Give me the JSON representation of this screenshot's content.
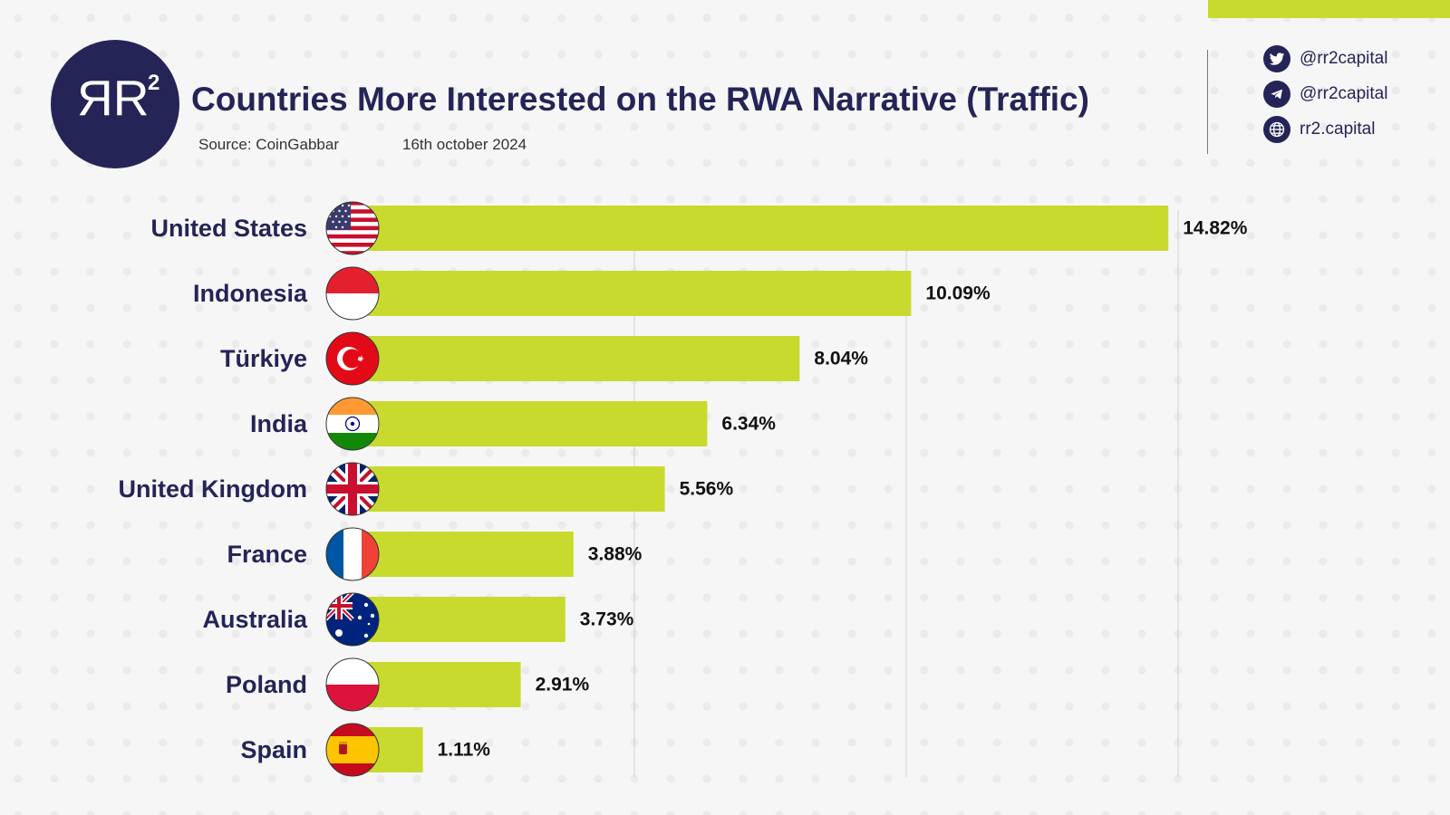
{
  "header": {
    "logo_text": "RR",
    "logo_superscript": "2",
    "title": "Countries More Interested on the RWA Narrative (Traffic)",
    "source": "Source: CoinGabbar",
    "date": "16th october 2024"
  },
  "social": [
    {
      "icon": "twitter-icon",
      "label": "@rr2capital"
    },
    {
      "icon": "telegram-icon",
      "label": "@rr2capital"
    },
    {
      "icon": "globe-icon",
      "label": "rr2.capital"
    }
  ],
  "colors": {
    "bar": "#c8da2e",
    "navy": "#252457",
    "accent": "#c8da2e"
  },
  "chart_data": {
    "type": "bar",
    "orientation": "horizontal",
    "title": "Countries More Interested on the RWA Narrative (Traffic)",
    "categories": [
      "United States",
      "Indonesia",
      "Türkiye",
      "India",
      "United Kingdom",
      "France",
      "Australia",
      "Poland",
      "Spain"
    ],
    "values": [
      14.82,
      10.09,
      8.04,
      6.34,
      5.56,
      3.88,
      3.73,
      2.91,
      1.11
    ],
    "value_labels": [
      "14.82%",
      "10.09%",
      "8.04%",
      "6.34%",
      "5.56%",
      "3.88%",
      "3.73%",
      "2.91%",
      "1.11%"
    ],
    "flags": [
      "us-flag-icon",
      "indonesia-flag-icon",
      "turkiye-flag-icon",
      "india-flag-icon",
      "uk-flag-icon",
      "france-flag-icon",
      "australia-flag-icon",
      "poland-flag-icon",
      "spain-flag-icon"
    ],
    "xlim": [
      0,
      15
    ],
    "gridlines": [
      5,
      10,
      15
    ],
    "xlabel": "",
    "ylabel": ""
  }
}
